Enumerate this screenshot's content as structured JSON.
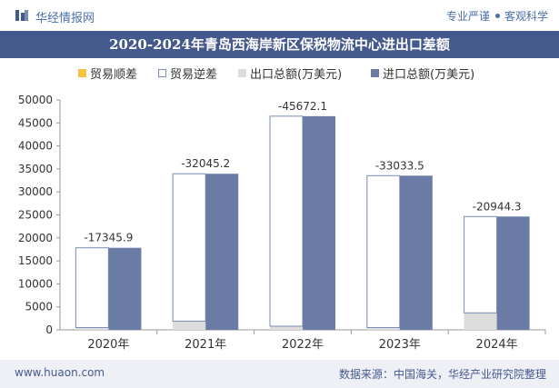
{
  "header": {
    "brand": "华经情报网",
    "tagline_left": "专业严谨",
    "tagline_right": "客观科学"
  },
  "colors": {
    "title_bar": "#44598c",
    "import_bar": "#6a7ba6",
    "export_bar": "#dcdcdc",
    "surplus": "#f5c242",
    "deficit_border": "#7a8bb5",
    "footer_bg": "#eef0f5"
  },
  "footer": {
    "website": "www.huaon.com",
    "source": "数据来源：中国海关，华经产业研究院整理"
  },
  "chart_data": {
    "type": "bar",
    "title": "2020-2024年青岛西海岸新区保税物流中心进出口差额",
    "categories": [
      "2020年",
      "2021年",
      "2022年",
      "2023年",
      "2024年"
    ],
    "ylim": [
      0,
      50000
    ],
    "yticks": [
      "0",
      "5000",
      "10000",
      "15000",
      "20000",
      "25000",
      "30000",
      "35000",
      "40000",
      "45000",
      "50000"
    ],
    "grid": false,
    "legend_position": "top",
    "series": [
      {
        "name": "贸易顺差",
        "values": [
          0,
          0,
          0,
          0,
          0
        ]
      },
      {
        "name": "贸易逆差",
        "values": [
          17345.9,
          32045.2,
          45672.1,
          33033.5,
          20944.3
        ]
      },
      {
        "name": "出口总额(万美元)",
        "values": [
          500,
          1900,
          800,
          500,
          3700
        ]
      },
      {
        "name": "进口总额(万美元)",
        "values": [
          17845.9,
          33945.2,
          46472.1,
          33533.5,
          24644.3
        ]
      }
    ],
    "data_labels": [
      "-17345.9",
      "-32045.2",
      "-45672.1",
      "-33033.5",
      "-20944.3"
    ]
  }
}
